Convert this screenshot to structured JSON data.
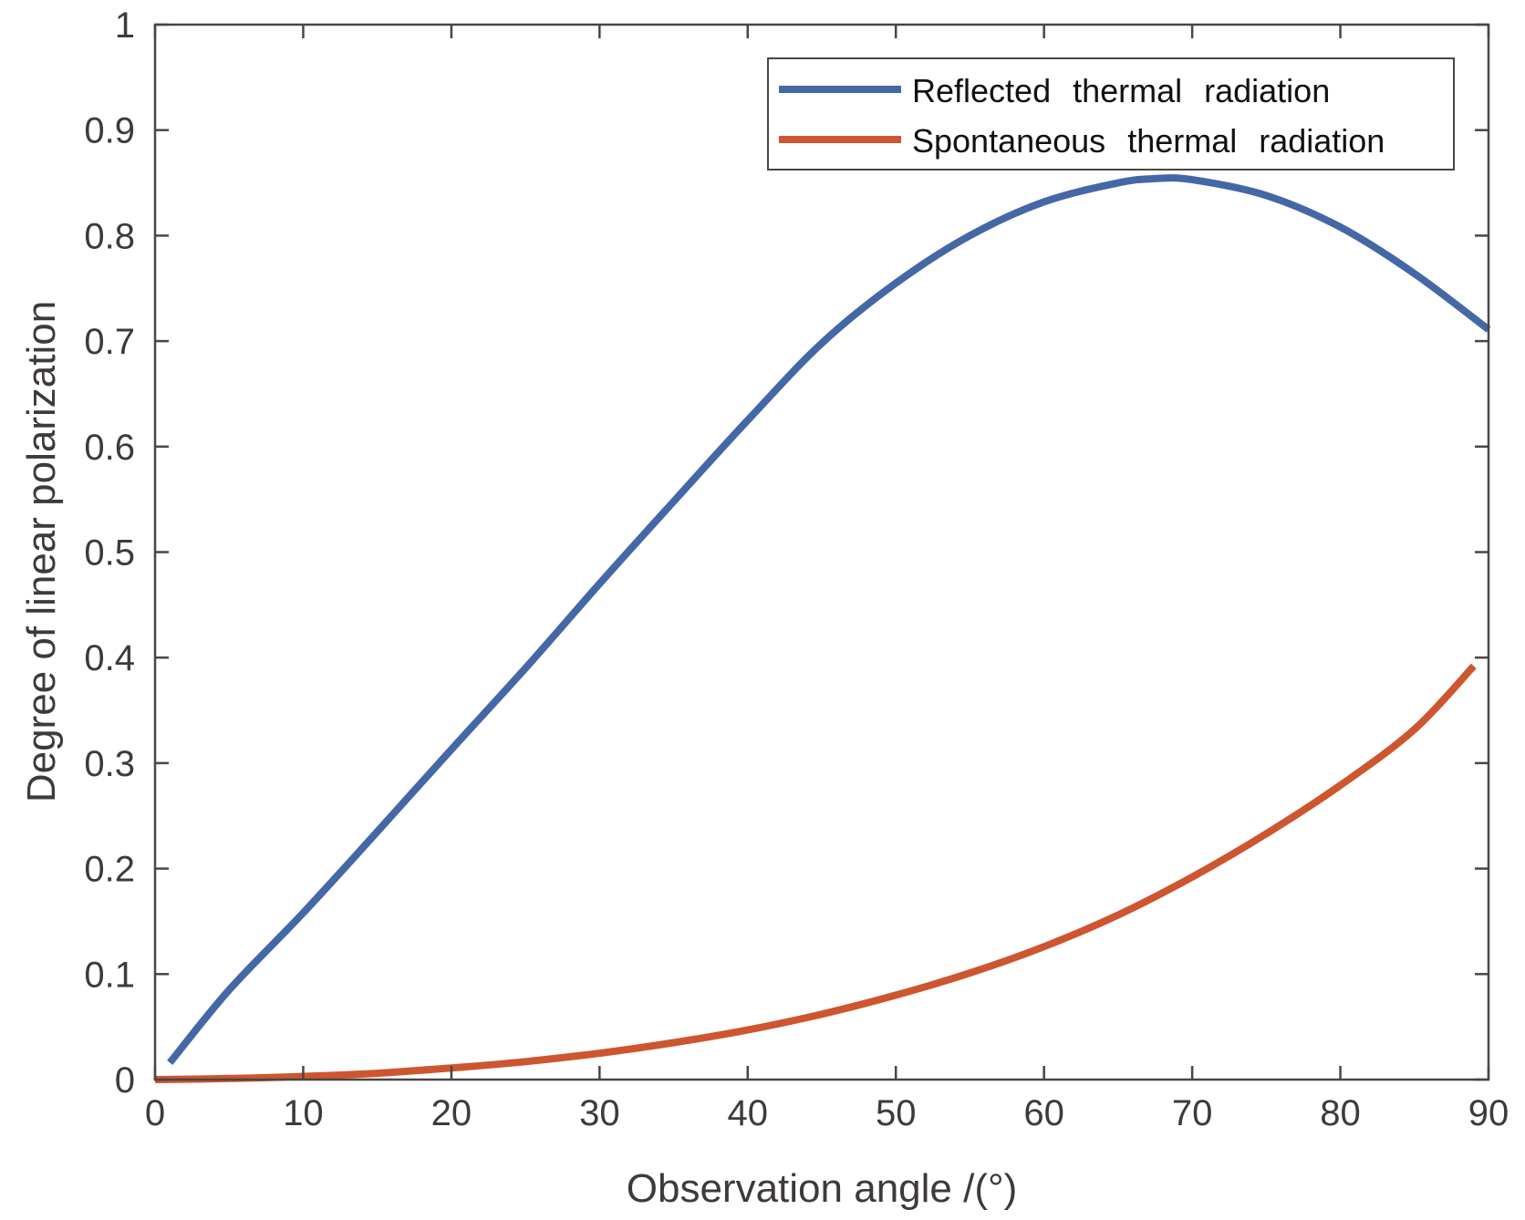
{
  "chart_data": {
    "type": "line",
    "title": "",
    "xlabel": "Observation angle /(°)",
    "ylabel": "Degree of linear polarization",
    "xlim": [
      0,
      90
    ],
    "ylim": [
      0,
      1
    ],
    "xticks": [
      0,
      10,
      20,
      30,
      40,
      50,
      60,
      70,
      80,
      90
    ],
    "xtick_labels": [
      "0",
      "10",
      "20",
      "30",
      "40",
      "50",
      "60",
      "70",
      "80",
      "90"
    ],
    "yticks": [
      0,
      0.1,
      0.2,
      0.3,
      0.4,
      0.5,
      0.6,
      0.7,
      0.8,
      0.9,
      1
    ],
    "ytick_labels": [
      "0",
      "0.1",
      "0.2",
      "0.3",
      "0.4",
      "0.5",
      "0.6",
      "0.7",
      "0.8",
      "0.9",
      "1"
    ],
    "grid": false,
    "box": true,
    "legend_position": "top-right",
    "series": [
      {
        "name": "Reflected  thermal  radiation",
        "color": "#4467a6",
        "x": [
          1,
          5,
          10,
          15,
          20,
          25,
          30,
          35,
          40,
          45,
          50,
          55,
          60,
          65,
          67.5,
          70,
          75,
          80,
          85,
          90
        ],
        "y": [
          0.016,
          0.085,
          0.158,
          0.235,
          0.313,
          0.39,
          0.47,
          0.548,
          0.625,
          0.698,
          0.755,
          0.8,
          0.832,
          0.85,
          0.854,
          0.853,
          0.838,
          0.808,
          0.764,
          0.711
        ]
      },
      {
        "name": "Spontaneous  thermal  radiation",
        "color": "#cd5630",
        "x": [
          0,
          5,
          10,
          15,
          20,
          25,
          30,
          35,
          40,
          45,
          50,
          55,
          60,
          65,
          70,
          75,
          80,
          85,
          89
        ],
        "y": [
          0,
          0.001,
          0.003,
          0.006,
          0.011,
          0.017,
          0.025,
          0.035,
          0.047,
          0.062,
          0.08,
          0.101,
          0.126,
          0.156,
          0.192,
          0.233,
          0.279,
          0.332,
          0.392
        ]
      }
    ]
  }
}
